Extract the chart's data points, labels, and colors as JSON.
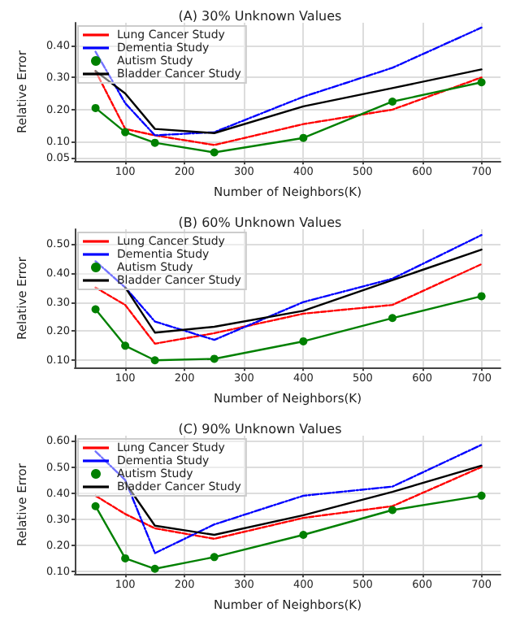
{
  "chart_data": [
    {
      "type": "line",
      "title": "(A) 30% Unknown Values",
      "xlabel": "Number of Neighbors(K)",
      "ylabel": "Relative Error",
      "x": [
        50,
        100,
        150,
        250,
        400,
        550,
        700
      ],
      "xlim": [
        15,
        732
      ],
      "xticks": [
        100,
        200,
        300,
        400,
        500,
        600,
        700
      ],
      "ylim": [
        0.04,
        0.47
      ],
      "yticks": [
        {
          "value": 0.05,
          "label": "0.05"
        },
        {
          "value": 0.1,
          "label": "0.10"
        },
        {
          "value": 0.2,
          "label": "0.20"
        },
        {
          "value": 0.3,
          "label": "0.30"
        },
        {
          "value": 0.4,
          "label": "0.40"
        }
      ],
      "grid": true,
      "legend": "top left",
      "series": [
        {
          "name": "Lung Cancer Study",
          "color": "#ff0000",
          "line_style": "dashed",
          "marker": "none",
          "values": [
            0.32,
            0.14,
            0.12,
            0.09,
            0.155,
            0.2,
            0.3
          ]
        },
        {
          "name": "Dementia Study",
          "color": "#0000ff",
          "line_style": "dashdot",
          "marker": "none",
          "values": [
            0.38,
            0.22,
            0.12,
            0.13,
            0.24,
            0.33,
            0.455
          ]
        },
        {
          "name": "Autism Study",
          "color": "#008000",
          "line_style": "solid",
          "marker": "circle",
          "values": [
            0.205,
            0.13,
            0.097,
            0.067,
            0.112,
            0.225,
            0.285
          ]
        },
        {
          "name": "Bladder Cancer Study",
          "color": "#000000",
          "line_style": "solid",
          "marker": "none",
          "values": [
            0.32,
            0.25,
            0.14,
            0.127,
            0.21,
            0.267,
            0.325
          ]
        }
      ]
    },
    {
      "type": "line",
      "title": "(B) 60% Unknown Values",
      "xlabel": "Number of Neighbors(K)",
      "ylabel": "Relative Error",
      "x": [
        50,
        100,
        150,
        250,
        400,
        550,
        700
      ],
      "xlim": [
        15,
        732
      ],
      "xticks": [
        100,
        200,
        300,
        400,
        500,
        600,
        700
      ],
      "ylim": [
        0.075,
        0.55
      ],
      "yticks": [
        {
          "value": 0.1,
          "label": "0.10"
        },
        {
          "value": 0.2,
          "label": "0.20"
        },
        {
          "value": 0.3,
          "label": "0.30"
        },
        {
          "value": 0.4,
          "label": "0.40"
        },
        {
          "value": 0.5,
          "label": "0.50"
        }
      ],
      "grid": true,
      "legend": "top left",
      "series": [
        {
          "name": "Lung Cancer Study",
          "color": "#ff0000",
          "line_style": "dashed",
          "marker": "none",
          "values": [
            0.35,
            0.29,
            0.157,
            0.193,
            0.26,
            0.29,
            0.43
          ]
        },
        {
          "name": "Dementia Study",
          "color": "#0000ff",
          "line_style": "dashdot",
          "marker": "none",
          "values": [
            0.44,
            0.35,
            0.233,
            0.17,
            0.3,
            0.38,
            0.53
          ]
        },
        {
          "name": "Autism Study",
          "color": "#008000",
          "line_style": "solid",
          "marker": "circle",
          "values": [
            0.275,
            0.15,
            0.1,
            0.105,
            0.165,
            0.245,
            0.32
          ]
        },
        {
          "name": "Bladder Cancer Study",
          "color": "#000000",
          "line_style": "solid",
          "marker": "none",
          "values": [
            null,
            0.35,
            0.195,
            0.215,
            0.27,
            0.375,
            0.48
          ]
        }
      ]
    },
    {
      "type": "line",
      "title": "(C) 90% Unknown Values",
      "xlabel": "Number of Neighbors(K)",
      "ylabel": "Relative Error",
      "x": [
        50,
        100,
        150,
        250,
        400,
        550,
        700
      ],
      "xlim": [
        15,
        732
      ],
      "xticks": [
        100,
        200,
        300,
        400,
        500,
        600,
        700
      ],
      "ylim": [
        0.09,
        0.62
      ],
      "yticks": [
        {
          "value": 0.1,
          "label": "0.10"
        },
        {
          "value": 0.2,
          "label": "0.20"
        },
        {
          "value": 0.3,
          "label": "0.30"
        },
        {
          "value": 0.4,
          "label": "0.40"
        },
        {
          "value": 0.5,
          "label": "0.50"
        },
        {
          "value": 0.6,
          "label": "0.60"
        }
      ],
      "grid": true,
      "legend": "top left",
      "series": [
        {
          "name": "Lung Cancer Study",
          "color": "#ff0000",
          "line_style": "dashed",
          "marker": "none",
          "values": [
            0.39,
            0.32,
            0.265,
            0.225,
            0.305,
            0.35,
            0.5
          ]
        },
        {
          "name": "Dementia Study",
          "color": "#0000ff",
          "line_style": "dashdot",
          "marker": "none",
          "values": [
            0.56,
            0.45,
            0.17,
            0.28,
            0.39,
            0.425,
            0.585
          ]
        },
        {
          "name": "Autism Study",
          "color": "#008000",
          "line_style": "solid",
          "marker": "circle",
          "values": [
            0.35,
            0.15,
            0.11,
            0.155,
            0.24,
            0.335,
            0.39
          ]
        },
        {
          "name": "Bladder Cancer Study",
          "color": "#000000",
          "line_style": "solid",
          "marker": "none",
          "values": [
            null,
            0.44,
            0.275,
            0.24,
            0.315,
            0.405,
            0.505
          ]
        }
      ]
    }
  ]
}
